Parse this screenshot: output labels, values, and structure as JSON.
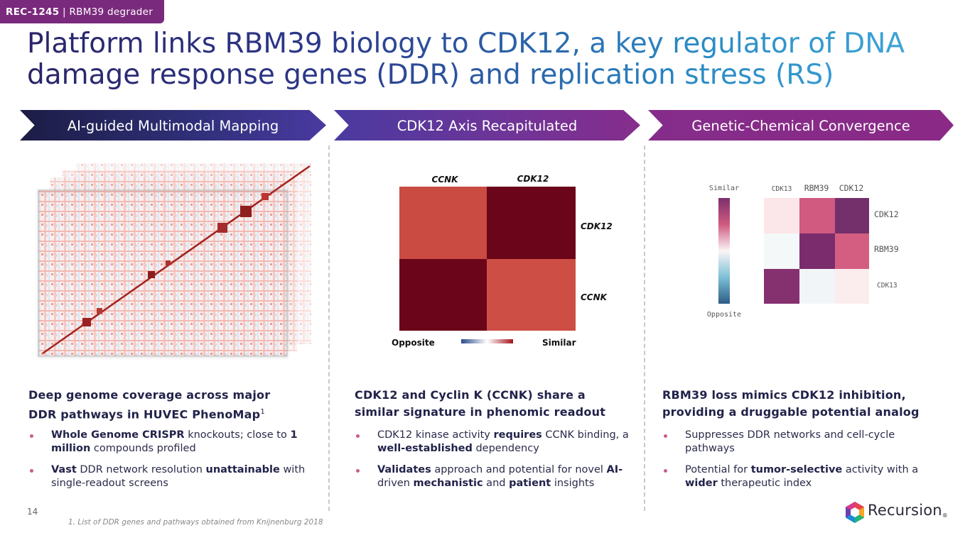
{
  "tag": {
    "code": "REC-1245",
    "sep": " | ",
    "desc": "RBM39 degrader"
  },
  "title": "Platform links RBM39 biology to CDK12, a key regulator of DNA damage response genes (DDR) and replication stress (RS)",
  "banners": [
    "AI-guided Multimodal Mapping",
    "CDK12 Axis Recapitulated",
    "Genetic-Chemical Convergence"
  ],
  "colors": {
    "tag": "#7a2a7c",
    "bullet": "#c95c8f",
    "heat_red": "#c94b42",
    "heat_dark": "#6b0519",
    "purple": "#7d2f6e",
    "pink": "#d05a80"
  },
  "panel2_heatmap": {
    "col_labels": [
      "CCNK",
      "CDK12"
    ],
    "row_labels": [
      "CDK12",
      "CCNK"
    ],
    "scale_left": "Opposite",
    "scale_right": "Similar"
  },
  "panel3_heatmap": {
    "scale_top": "Similar",
    "scale_bottom": "Opposite",
    "col_labels": [
      "CDK13",
      "RBM39",
      "CDK12"
    ],
    "row_labels": [
      "CDK12",
      "RBM39",
      "CDK13"
    ]
  },
  "col1": {
    "heading_line1": "Deep genome coverage across major",
    "heading_line2": "DDR pathways in HUVEC PhenoMap",
    "heading_sup": "1",
    "b1": {
      "s1": "Whole Genome CRISPR",
      "t1": " knockouts; close to ",
      "s2": "1 million",
      "t2": " compounds profiled"
    },
    "b2": {
      "s1": "Vast",
      "t1": " DDR network resolution ",
      "s2": "unattainable",
      "t2": " with single-readout screens"
    }
  },
  "col2": {
    "heading_line1": "CDK12 and Cyclin K (CCNK) share a",
    "heading_line2": "similar signature in phenomic readout",
    "b1": {
      "t0": "CDK12 kinase activity ",
      "s1": "requires",
      "t1": " CCNK binding, a ",
      "s2": "well-established",
      "t2": " dependency"
    },
    "b2": {
      "s1": "Validates",
      "t1": " approach and potential for novel ",
      "s2": "AI-",
      "t2": "driven ",
      "s3": "mechanistic",
      "t3": " and ",
      "s4": "patient",
      "t4": " insights"
    }
  },
  "col3": {
    "heading_line1": "RBM39 loss mimics CDK12 inhibition,",
    "heading_line2": "providing a druggable potential analog",
    "b1": {
      "t0": "Suppresses DDR networks and cell-cycle pathways"
    },
    "b2": {
      "t0": "Potential for ",
      "s1": "tumor-selective",
      "t1": " activity with a ",
      "s2": "wider",
      "t2": " therapeutic index"
    }
  },
  "page_number": "14",
  "footnote": "1.   List of DDR genes and pathways obtained from Knijnenburg 2018",
  "logo_text": "Recursion",
  "logo_mark": "®"
}
